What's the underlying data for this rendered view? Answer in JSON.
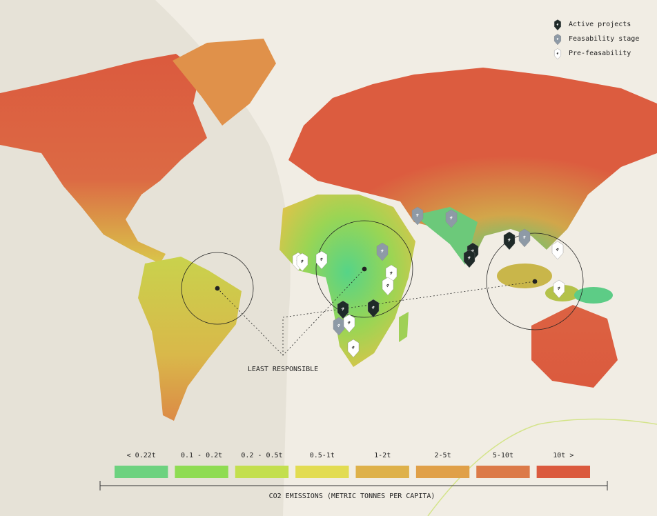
{
  "legend": {
    "items": [
      {
        "label": "Active projects",
        "color": "#1f2a28"
      },
      {
        "label": "Feasability stage",
        "color": "#8e9aa6"
      },
      {
        "label": "Pre-feasability",
        "color": "#ffffff"
      }
    ]
  },
  "annotation": "LEAST RESPONSIBLE",
  "scale": {
    "title": "CO2 EMISSIONS (METRIC TONNES PER CAPITA)",
    "categories": [
      "< 0.22t",
      "0.1 - 0.2t",
      "0.2 - 0.5t",
      "0.5-1t",
      "1-2t",
      "2-5t",
      "5-10t",
      "10t >"
    ],
    "colors": [
      "#6dd27f",
      "#8fdc52",
      "#c3df4e",
      "#e2dc52",
      "#deb14a",
      "#e0a048",
      "#dc7a48",
      "#db5a3e"
    ]
  }
}
